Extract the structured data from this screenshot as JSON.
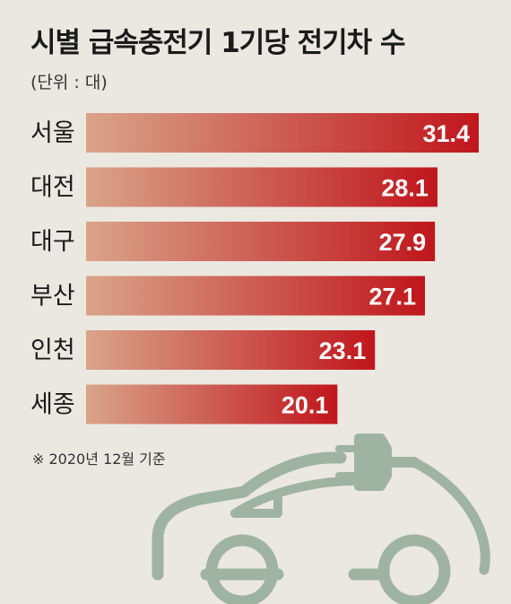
{
  "header": {
    "title": "시별 급속충전기 1기당 전기차 수",
    "unit": "(단위 : 대)"
  },
  "footnote": "※ 2020년 12월 기준",
  "colors": {
    "background": "#ebe8e1",
    "bar_start": "#d9a48a",
    "bar_end": "#c0161c",
    "car_outline": "#9fb3a2"
  },
  "chart_data": {
    "type": "bar",
    "orientation": "horizontal",
    "categories": [
      "서울",
      "대전",
      "대구",
      "부산",
      "인천",
      "세종"
    ],
    "values": [
      31.4,
      28.1,
      27.9,
      27.1,
      23.1,
      20.1
    ],
    "value_labels": [
      "31.4",
      "28.1",
      "27.9",
      "27.1",
      "23.1",
      "20.1"
    ],
    "xlim": [
      0,
      31.4
    ],
    "grid": false
  }
}
